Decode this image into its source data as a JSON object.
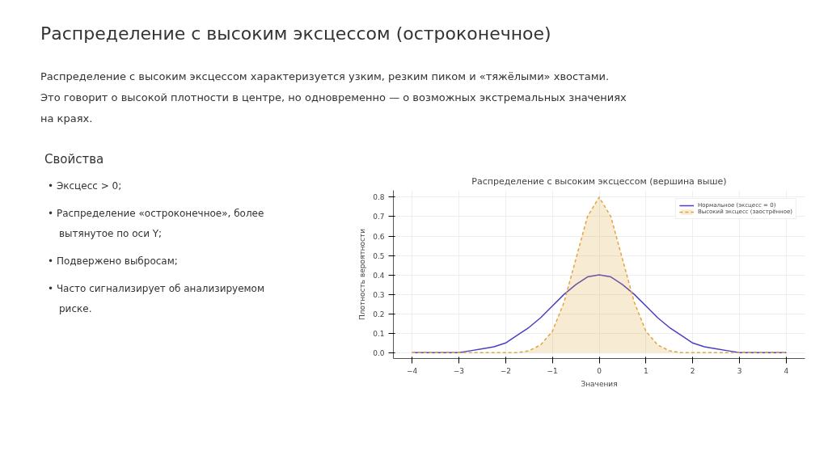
{
  "chart_data": {
    "type": "line",
    "title": "Распределение с высоким эксцессом (вершина выше)",
    "xlabel": "Значения",
    "ylabel": "Плотность вероятности",
    "annotations": [
      "Распределение с высоким эксцессом (остроконечное)",
      "Распределение с высоким эксцессом характеризуется узким, резким пиком и «тяжёлыми» хвостами.",
      "Это говорит о высокой плотности в центре, но одновременно — о возможных экстремальных значениях на краях.",
      "Свойства",
      "•  Эксцесс > 0;",
      "•  Распределение «остроконечное», более вытянутое по оси Y;",
      "•  Подвержено выбросам;",
      "•  Часто сигнализирует об анализируемом риске."
    ],
    "x": [
      -4,
      -3.75,
      -3.5,
      -3.25,
      -3,
      -2.75,
      -2.5,
      -2.25,
      -2,
      -1.75,
      -1.5,
      -1.25,
      -1,
      -0.75,
      -0.5,
      -0.25,
      0,
      0.25,
      0.5,
      0.75,
      1,
      1.25,
      1.5,
      1.75,
      2,
      2.25,
      2.5,
      2.75,
      3,
      3.25,
      3.5,
      3.75,
      4
    ],
    "series": [
      {
        "name": "Нормальное (эксцесс = 0)",
        "color": "#4a3fc2",
        "line_style": "solid",
        "values": [
          0.0,
          0.0,
          0.0,
          0.0,
          0.0,
          0.01,
          0.02,
          0.03,
          0.05,
          0.09,
          0.13,
          0.18,
          0.24,
          0.3,
          0.35,
          0.39,
          0.4,
          0.39,
          0.35,
          0.3,
          0.24,
          0.18,
          0.13,
          0.09,
          0.05,
          0.03,
          0.02,
          0.01,
          0.0,
          0.0,
          0.0,
          0.0,
          0.0
        ]
      },
      {
        "name": "Высокий эксцесс (заострённое)",
        "type": "area",
        "color": "#e0a53c",
        "line_style": "dashed",
        "values": [
          0.0,
          0.0,
          0.0,
          0.0,
          0.0,
          0.0,
          0.0,
          0.0,
          0.0,
          0.0,
          0.01,
          0.04,
          0.11,
          0.26,
          0.48,
          0.7,
          0.8,
          0.7,
          0.48,
          0.26,
          0.11,
          0.04,
          0.01,
          0.0,
          0.0,
          0.0,
          0.0,
          0.0,
          0.0,
          0.0,
          0.0,
          0.0,
          0.0
        ]
      }
    ],
    "xlim": [
      -4.4,
      4.4
    ],
    "ylim": [
      -0.03,
      0.835
    ],
    "xticks": [
      {
        "value": -4,
        "label": "−4"
      },
      {
        "value": -3,
        "label": "−3"
      },
      {
        "value": -2,
        "label": "−2"
      },
      {
        "value": -1,
        "label": "−1"
      },
      0,
      1,
      2,
      3,
      4
    ],
    "yticks": [
      {
        "value": 0,
        "label": "0.0"
      },
      0.1,
      0.2,
      0.3,
      0.4,
      0.5,
      0.6,
      0.7,
      0.8
    ],
    "grid": true,
    "legend": "top right",
    "marker": "none"
  }
}
